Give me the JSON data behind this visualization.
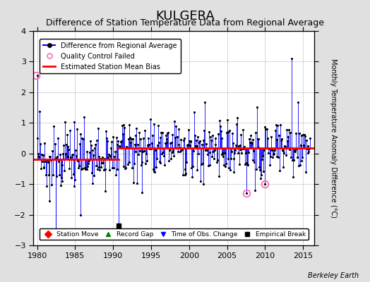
{
  "title": "KULGERA",
  "subtitle": "Difference of Station Temperature Data from Regional Average",
  "ylabel": "Monthly Temperature Anomaly Difference (°C)",
  "xlim": [
    1979.5,
    2016.5
  ],
  "ylim": [
    -3,
    4
  ],
  "yticks": [
    -3,
    -2,
    -1,
    0,
    1,
    2,
    3,
    4
  ],
  "xticks": [
    1980,
    1985,
    1990,
    1995,
    2000,
    2005,
    2010,
    2015
  ],
  "bias_line_1": -0.18,
  "bias_line_2": 0.18,
  "bias_break_year": 1990.75,
  "background_color": "#e0e0e0",
  "plot_bg_color": "#ffffff",
  "grid_color": "#c8c8c8",
  "title_fontsize": 13,
  "subtitle_fontsize": 9,
  "berkeley_earth_label": "Berkeley Earth",
  "empirical_break_x": 1990.75,
  "empirical_break_y": -2.35,
  "qc_failed_points": [
    [
      1979.83,
      2.55
    ],
    [
      2007.5,
      -1.3
    ],
    [
      2010.0,
      -1.0
    ]
  ],
  "time_of_obs_change_x": 1982.5,
  "time_of_obs_change_y": -2.55
}
